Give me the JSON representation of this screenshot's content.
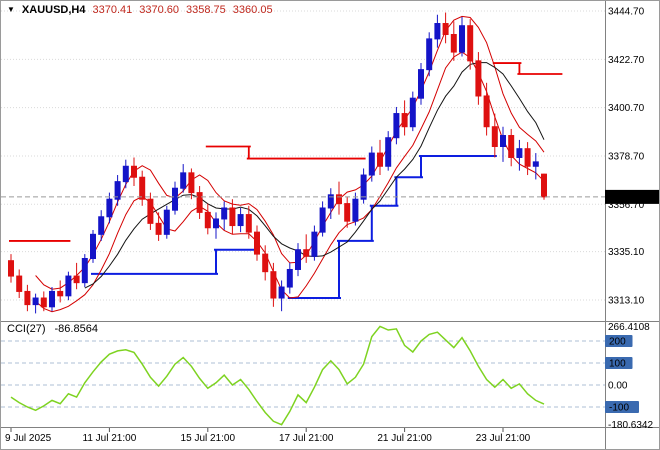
{
  "header": {
    "dropdown_icon": "▼",
    "symbol": "XAUUSD,H4",
    "open": "3370.41",
    "high": "3370.60",
    "low": "3358.75",
    "close": "3360.05"
  },
  "indicator": {
    "label": "CCI(27)",
    "value": "-86.8564"
  },
  "colors": {
    "up": "#1414c8",
    "down": "#de1010",
    "ma_fast": "#d40000",
    "ma_slow": "#141414",
    "support": "#0d1ee0",
    "resistance": "#e80000",
    "cci_line": "#7ed321",
    "price_badge_bg": "#000000",
    "price_badge_text": "#ffffff",
    "level_badge_bg": "#3a6ab0",
    "level_badge_text": "#ffffff",
    "ohlc_text": "#c0281e",
    "grid": "#dadada",
    "cci_grid": "#aebfd4",
    "axis_text": "#000000",
    "separator": "#818181",
    "bid_line": "#9a9a9a"
  },
  "price_axis": {
    "labels": [
      {
        "text": "3444.70",
        "price": 3444.7
      },
      {
        "text": "3422.70",
        "price": 3422.7
      },
      {
        "text": "3400.70",
        "price": 3400.7
      },
      {
        "text": "3378.70",
        "price": 3378.7
      },
      {
        "text": "3356.70",
        "price": 3356.7
      },
      {
        "text": "3335.10",
        "price": 3335.1
      },
      {
        "text": "3313.10",
        "price": 3313.1
      }
    ],
    "current": {
      "text": "3360.05",
      "price": 3360.05
    }
  },
  "cci_axis": {
    "max": {
      "text": "266.4108",
      "value": 266.4108
    },
    "min": {
      "text": "-180.6342",
      "value": -180.6342
    },
    "levels": [
      {
        "text": "200",
        "value": 200,
        "badge": true
      },
      {
        "text": "100",
        "value": 100,
        "badge": true
      },
      {
        "text": "0.00",
        "value": 0,
        "badge": false
      },
      {
        "text": "-100",
        "value": -100,
        "badge": true
      }
    ]
  },
  "time_axis": {
    "labels": [
      {
        "text": "9 Jul 2025",
        "i": 0,
        "align": "left"
      },
      {
        "text": "11 Jul 21:00",
        "i": 12,
        "align": "center"
      },
      {
        "text": "15 Jul 21:00",
        "i": 24,
        "align": "center"
      },
      {
        "text": "17 Jul 21:00",
        "i": 36,
        "align": "center"
      },
      {
        "text": "21 Jul 21:00",
        "i": 48,
        "align": "center"
      },
      {
        "text": "23 Jul 21:00",
        "i": 60,
        "align": "center"
      }
    ]
  },
  "chart_data": {
    "type": "candlestick",
    "symbol": "XAUUSD",
    "timeframe": "H4",
    "title": "XAUUSD,H4",
    "price_scale": {
      "top_price": 3444.7,
      "bottom_price": 3313.1
    },
    "last_price": 3360.05,
    "ohlc": [
      [
        3331,
        3334,
        3321,
        3324
      ],
      [
        3324,
        3327,
        3314,
        3317
      ],
      [
        3317,
        3320,
        3308,
        3311
      ],
      [
        3311,
        3316,
        3307,
        3314
      ],
      [
        3314,
        3317,
        3308,
        3310
      ],
      [
        3310,
        3319,
        3308,
        3317
      ],
      [
        3317,
        3322,
        3312,
        3315
      ],
      [
        3315,
        3326,
        3313,
        3324
      ],
      [
        3324,
        3330,
        3318,
        3321
      ],
      [
        3321,
        3334,
        3319,
        3332
      ],
      [
        3332,
        3345,
        3330,
        3343
      ],
      [
        3343,
        3354,
        3340,
        3351
      ],
      [
        3351,
        3362,
        3348,
        3359
      ],
      [
        3359,
        3370,
        3356,
        3367
      ],
      [
        3367,
        3377,
        3364,
        3374
      ],
      [
        3374,
        3378,
        3365,
        3369
      ],
      [
        3369,
        3372,
        3356,
        3359
      ],
      [
        3359,
        3362,
        3345,
        3348
      ],
      [
        3348,
        3353,
        3340,
        3343
      ],
      [
        3343,
        3356,
        3341,
        3354
      ],
      [
        3354,
        3367,
        3352,
        3364
      ],
      [
        3364,
        3375,
        3362,
        3371
      ],
      [
        3371,
        3373,
        3359,
        3362
      ],
      [
        3362,
        3365,
        3350,
        3353
      ],
      [
        3353,
        3357,
        3343,
        3346
      ],
      [
        3346,
        3353,
        3341,
        3350
      ],
      [
        3350,
        3358,
        3345,
        3355
      ],
      [
        3355,
        3359,
        3343,
        3347
      ],
      [
        3347,
        3355,
        3344,
        3352
      ],
      [
        3352,
        3356,
        3341,
        3344
      ],
      [
        3344,
        3347,
        3331,
        3334
      ],
      [
        3334,
        3338,
        3322,
        3326
      ],
      [
        3326,
        3330,
        3310,
        3314
      ],
      [
        3314,
        3322,
        3308,
        3319
      ],
      [
        3319,
        3330,
        3316,
        3327
      ],
      [
        3327,
        3339,
        3324,
        3336
      ],
      [
        3336,
        3343,
        3330,
        3333
      ],
      [
        3333,
        3347,
        3331,
        3344
      ],
      [
        3344,
        3358,
        3342,
        3355
      ],
      [
        3355,
        3364,
        3350,
        3361
      ],
      [
        3361,
        3367,
        3352,
        3357
      ],
      [
        3357,
        3360,
        3346,
        3349
      ],
      [
        3349,
        3362,
        3347,
        3359
      ],
      [
        3359,
        3373,
        3357,
        3370
      ],
      [
        3370,
        3383,
        3367,
        3380
      ],
      [
        3380,
        3386,
        3370,
        3374
      ],
      [
        3374,
        3390,
        3372,
        3387
      ],
      [
        3387,
        3401,
        3384,
        3398
      ],
      [
        3398,
        3404,
        3388,
        3392
      ],
      [
        3392,
        3408,
        3390,
        3405
      ],
      [
        3405,
        3421,
        3402,
        3418
      ],
      [
        3418,
        3435,
        3415,
        3432
      ],
      [
        3432,
        3443,
        3428,
        3439
      ],
      [
        3439,
        3444,
        3430,
        3434
      ],
      [
        3434,
        3440,
        3422,
        3426
      ],
      [
        3426,
        3442,
        3424,
        3438
      ],
      [
        3438,
        3441,
        3418,
        3422
      ],
      [
        3422,
        3426,
        3402,
        3406
      ],
      [
        3406,
        3412,
        3388,
        3392
      ],
      [
        3392,
        3398,
        3378,
        3383
      ],
      [
        3383,
        3392,
        3376,
        3388
      ],
      [
        3388,
        3391,
        3374,
        3378
      ],
      [
        3378,
        3386,
        3372,
        3382
      ],
      [
        3382,
        3385,
        3370,
        3374
      ],
      [
        3374,
        3380,
        3368,
        3376
      ],
      [
        3370.41,
        3370.6,
        3358.75,
        3360.05
      ]
    ],
    "moving_averages": [
      {
        "name": "ma-high",
        "source": "high",
        "period": 4,
        "color_key": "ma_fast",
        "width": 1
      },
      {
        "name": "ma-low",
        "source": "low",
        "period": 4,
        "color_key": "ma_fast",
        "width": 1
      },
      {
        "name": "ma-slow",
        "source": "close",
        "period": 10,
        "color_key": "ma_slow",
        "width": 1
      }
    ],
    "support_line": {
      "color_key": "support",
      "width": 2,
      "segments": [
        [
          10,
          25,
          3325
        ],
        [
          25,
          30,
          3336
        ],
        [
          34,
          40,
          3314
        ],
        [
          40,
          44,
          3340
        ],
        [
          44,
          47,
          3356
        ],
        [
          47,
          50,
          3369
        ],
        [
          50,
          59,
          3378.7
        ]
      ]
    },
    "resistance_line": {
      "color_key": "resistance",
      "width": 1.8,
      "segments": [
        [
          0,
          7,
          3340
        ],
        [
          24,
          29,
          3383
        ],
        [
          29,
          43,
          3377.5
        ],
        [
          59,
          62,
          3421
        ],
        [
          62,
          67,
          3416
        ]
      ]
    },
    "cci": {
      "period": 27,
      "last_value": -86.8564,
      "range": [
        -180.6342,
        266.4108
      ],
      "values": [
        -55,
        -80,
        -100,
        -115,
        -95,
        -70,
        -85,
        -40,
        -55,
        10,
        60,
        105,
        140,
        155,
        160,
        148,
        95,
        35,
        -5,
        40,
        95,
        125,
        85,
        30,
        -15,
        10,
        45,
        0,
        25,
        -20,
        -75,
        -125,
        -165,
        -180.6342,
        -120,
        -45,
        -80,
        -10,
        70,
        110,
        70,
        5,
        35,
        95,
        220,
        266.4108,
        250,
        255,
        180,
        150,
        200,
        230,
        240,
        205,
        170,
        215,
        155,
        85,
        25,
        -10,
        25,
        -15,
        5,
        -40,
        -70,
        -86.8564
      ]
    }
  }
}
